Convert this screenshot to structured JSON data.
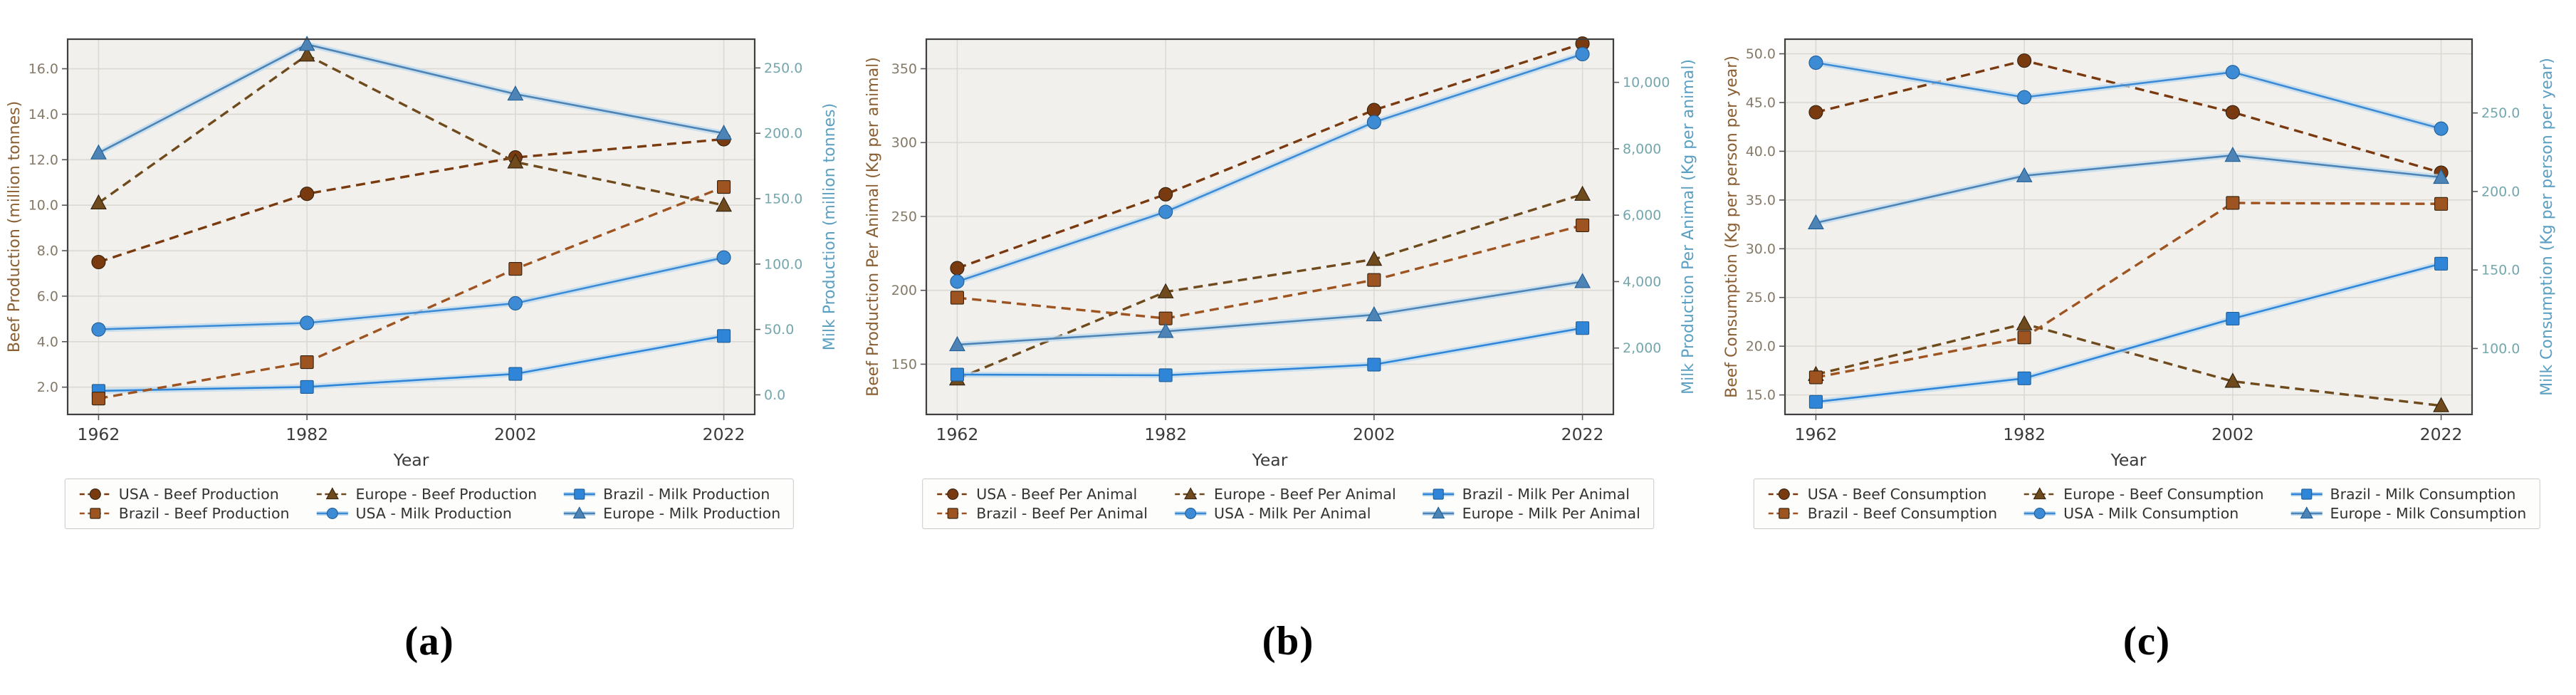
{
  "figure_kind": "three-panel dual-axis line charts",
  "palette": {
    "plot_bg": "#f1f0ec",
    "grid": "#dcd9d3",
    "spine": "#3f3f3f",
    "milk_halo": "#bcd9ef",
    "left_tick_color": "#857a68",
    "left_label_color": "#8a5f33",
    "right_tick_color": "#74a7ad",
    "right_label_color": "#5b9fc2",
    "x_tick_color": "#3a3a3a",
    "legend_text_color": "#333333",
    "beef_usa": "#7a3a10",
    "beef_brazil": "#9e5420",
    "beef_europe": "#6e4a1c",
    "milk_usa": "#3d8ad5",
    "milk_brazil": "#2f86d8",
    "milk_europe": "#4d84b5"
  },
  "chart_data": [
    {
      "id": "a",
      "type": "line",
      "caption": "(a)",
      "x_label": "Year",
      "x_ticks": [
        "1962",
        "1982",
        "2002",
        "2022"
      ],
      "x_values": [
        1962,
        1982,
        2002,
        2022
      ],
      "left_axis": {
        "label": "Beef Production (million tonnes)",
        "min": 0.8,
        "max": 17.3,
        "ticks": [
          {
            "v": 2,
            "label": "2.0"
          },
          {
            "v": 4,
            "label": "4.0"
          },
          {
            "v": 6,
            "label": "6.0"
          },
          {
            "v": 8,
            "label": "8.0"
          },
          {
            "v": 10,
            "label": "10.0"
          },
          {
            "v": 12,
            "label": "12.0"
          },
          {
            "v": 14,
            "label": "14.0"
          },
          {
            "v": 16,
            "label": "16.0"
          }
        ]
      },
      "right_axis": {
        "label": "Milk Production (million tonnes)",
        "min": -15,
        "max": 272,
        "ticks": [
          {
            "v": 0,
            "label": "0.0"
          },
          {
            "v": 50,
            "label": "50.0"
          },
          {
            "v": 100,
            "label": "100.0"
          },
          {
            "v": 150,
            "label": "150.0"
          },
          {
            "v": 200,
            "label": "200.0"
          },
          {
            "v": 250,
            "label": "250.0"
          }
        ]
      },
      "series": [
        {
          "name": "USA - Beef Production",
          "axis": "left",
          "marker": "circle",
          "line": "dashed",
          "color": "#7a3a10",
          "values": [
            7.5,
            10.5,
            12.1,
            12.9
          ]
        },
        {
          "name": "Europe - Beef Production",
          "axis": "left",
          "marker": "triangle",
          "line": "dashed",
          "color": "#6e4a1c",
          "values": [
            10.1,
            16.6,
            11.9,
            10.0
          ]
        },
        {
          "name": "Brazil - Milk Production",
          "axis": "right",
          "marker": "square",
          "line": "solid",
          "color": "#2f86d8",
          "values": [
            3,
            6,
            16,
            45
          ]
        },
        {
          "name": "Brazil - Beef Production",
          "axis": "left",
          "marker": "square",
          "line": "dashed",
          "color": "#9e5420",
          "values": [
            1.5,
            3.1,
            7.2,
            10.8
          ]
        },
        {
          "name": "USA - Milk Production",
          "axis": "right",
          "marker": "circle",
          "line": "solid",
          "color": "#3d8ad5",
          "values": [
            50,
            55,
            70,
            105
          ]
        },
        {
          "name": "Europe - Milk Production",
          "axis": "right",
          "marker": "triangle",
          "line": "solid",
          "color": "#4d84b5",
          "values": [
            185,
            268,
            230,
            200
          ]
        }
      ]
    },
    {
      "id": "b",
      "type": "line",
      "caption": "(b)",
      "x_label": "Year",
      "x_ticks": [
        "1962",
        "1982",
        "2002",
        "2022"
      ],
      "x_values": [
        1962,
        1982,
        2002,
        2022
      ],
      "left_axis": {
        "label": "Beef Production Per Animal (Kg per animal)",
        "min": 116,
        "max": 370,
        "ticks": [
          {
            "v": 150,
            "label": "150"
          },
          {
            "v": 200,
            "label": "200"
          },
          {
            "v": 250,
            "label": "250"
          },
          {
            "v": 300,
            "label": "300"
          },
          {
            "v": 350,
            "label": "350"
          }
        ]
      },
      "right_axis": {
        "label": "Milk Production Per Animal (Kg per animal)",
        "min": 0,
        "max": 11300,
        "ticks": [
          {
            "v": 2000,
            "label": "2,000"
          },
          {
            "v": 4000,
            "label": "4,000"
          },
          {
            "v": 6000,
            "label": "6,000"
          },
          {
            "v": 8000,
            "label": "8,000"
          },
          {
            "v": 10000,
            "label": "10,000"
          }
        ]
      },
      "series": [
        {
          "name": "USA - Beef Per Animal",
          "axis": "left",
          "marker": "circle",
          "line": "dashed",
          "color": "#7a3a10",
          "values": [
            215,
            265,
            322,
            367
          ]
        },
        {
          "name": "Europe - Beef Per Animal",
          "axis": "left",
          "marker": "triangle",
          "line": "dashed",
          "color": "#6e4a1c",
          "values": [
            140,
            199,
            221,
            265
          ]
        },
        {
          "name": "Brazil - Milk Per Animal",
          "axis": "right",
          "marker": "square",
          "line": "solid",
          "color": "#2f86d8",
          "values": [
            1200,
            1180,
            1500,
            2600
          ]
        },
        {
          "name": "Brazil - Beef Per Animal",
          "axis": "left",
          "marker": "square",
          "line": "dashed",
          "color": "#9e5420",
          "values": [
            195,
            181,
            207,
            244
          ]
        },
        {
          "name": "USA - Milk Per Animal",
          "axis": "right",
          "marker": "circle",
          "line": "solid",
          "color": "#3d8ad5",
          "values": [
            4000,
            6100,
            8800,
            10850
          ]
        },
        {
          "name": "Europe - Milk Per Animal",
          "axis": "right",
          "marker": "triangle",
          "line": "solid",
          "color": "#4d84b5",
          "values": [
            2100,
            2500,
            3000,
            4000
          ]
        }
      ]
    },
    {
      "id": "c",
      "type": "line",
      "caption": "(c)",
      "x_label": "Year",
      "x_ticks": [
        "1962",
        "1982",
        "2002",
        "2022"
      ],
      "x_values": [
        1962,
        1982,
        2002,
        2022
      ],
      "left_axis": {
        "label": "Beef Consumption (Kg per person per year)",
        "min": 13,
        "max": 51.5,
        "ticks": [
          {
            "v": 15,
            "label": "15.0"
          },
          {
            "v": 20,
            "label": "20.0"
          },
          {
            "v": 25,
            "label": "25.0"
          },
          {
            "v": 30,
            "label": "30.0"
          },
          {
            "v": 35,
            "label": "35.0"
          },
          {
            "v": 40,
            "label": "40.0"
          },
          {
            "v": 45,
            "label": "45.0"
          },
          {
            "v": 50,
            "label": "50.0"
          }
        ]
      },
      "right_axis": {
        "label": "Milk Consumption (Kg per person per year)",
        "min": 58,
        "max": 297,
        "ticks": [
          {
            "v": 100,
            "label": "100.0"
          },
          {
            "v": 150,
            "label": "150.0"
          },
          {
            "v": 200,
            "label": "200.0"
          },
          {
            "v": 250,
            "label": "250.0"
          }
        ]
      },
      "series": [
        {
          "name": "USA - Beef Consumption",
          "axis": "left",
          "marker": "circle",
          "line": "dashed",
          "color": "#7a3a10",
          "values": [
            44,
            49.3,
            44,
            37.8
          ]
        },
        {
          "name": "Europe - Beef Consumption",
          "axis": "left",
          "marker": "triangle",
          "line": "dashed",
          "color": "#6e4a1c",
          "values": [
            17.1,
            22.3,
            16.4,
            13.9
          ]
        },
        {
          "name": "Brazil - Milk Consumption",
          "axis": "right",
          "marker": "square",
          "line": "solid",
          "color": "#2f86d8",
          "values": [
            66,
            81,
            119,
            154
          ]
        },
        {
          "name": "Brazil - Beef Consumption",
          "axis": "left",
          "marker": "square",
          "line": "dashed",
          "color": "#9e5420",
          "values": [
            16.8,
            20.9,
            34.7,
            34.6
          ]
        },
        {
          "name": "USA - Milk Consumption",
          "axis": "right",
          "marker": "circle",
          "line": "solid",
          "color": "#3d8ad5",
          "values": [
            282,
            260,
            276,
            240
          ]
        },
        {
          "name": "Europe - Milk Consumption",
          "axis": "right",
          "marker": "triangle",
          "line": "solid",
          "color": "#4d84b5",
          "values": [
            180,
            210,
            223,
            209
          ]
        }
      ]
    }
  ]
}
